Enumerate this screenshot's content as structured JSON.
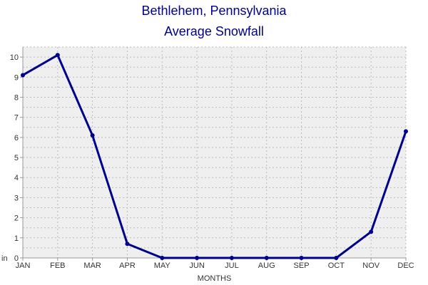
{
  "chart_title": "Bethlehem, Pennsylvania",
  "chart_subtitle": "Average Snowfall",
  "chart_data": {
    "type": "line",
    "title": "Bethlehem, Pennsylvania",
    "subtitle": "Average Snowfall",
    "xlabel": "MONTHS",
    "ylabel": "in",
    "categories": [
      "JAN",
      "FEB",
      "MAR",
      "APR",
      "MAY",
      "JUN",
      "JUL",
      "AUG",
      "SEP",
      "OCT",
      "NOV",
      "DEC"
    ],
    "series": [
      {
        "values": [
          9.1,
          10.1,
          6.1,
          0.7,
          0.0,
          0.0,
          0.0,
          0.0,
          0.0,
          0.0,
          1.3,
          6.3
        ]
      }
    ],
    "ylim": [
      0,
      10.5
    ],
    "yticks": [
      0,
      1,
      2,
      3,
      4,
      5,
      6,
      7,
      8,
      9,
      10
    ],
    "grid": true,
    "legend": "none",
    "colors": {
      "line": "#00008b",
      "plot_background": "#efefef",
      "grid": "#bbbbbb",
      "title": "#00008b"
    }
  }
}
